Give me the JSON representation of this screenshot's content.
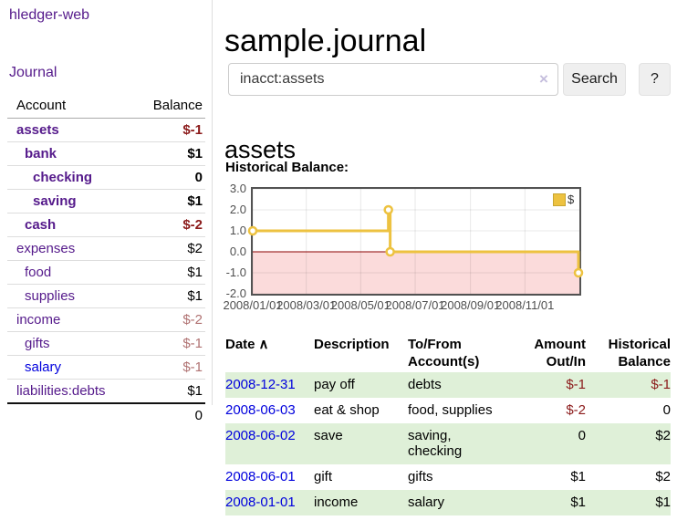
{
  "app": {
    "brand": "hledger-web"
  },
  "sidebar": {
    "nav": {
      "journal": "Journal"
    },
    "accounts_table": {
      "headers": {
        "account": "Account",
        "balance": "Balance"
      },
      "rows": [
        {
          "name": "assets",
          "balance": "$-1"
        },
        {
          "name": "bank",
          "balance": "$1"
        },
        {
          "name": "checking",
          "balance": "0"
        },
        {
          "name": "saving",
          "balance": "$1"
        },
        {
          "name": "cash",
          "balance": "$-2"
        },
        {
          "name": "expenses",
          "balance": "$2"
        },
        {
          "name": "food",
          "balance": "$1"
        },
        {
          "name": "supplies",
          "balance": "$1"
        },
        {
          "name": "income",
          "balance": "$-2"
        },
        {
          "name": "gifts",
          "balance": "$-1"
        },
        {
          "name": "salary",
          "balance": "$-1"
        },
        {
          "name": "liabilities:debts",
          "balance": "$1"
        }
      ],
      "total": "0"
    }
  },
  "main": {
    "title": "sample.journal",
    "search": {
      "value": "inacct:assets",
      "clear_icon": "×",
      "button": "Search",
      "help_button": "?"
    },
    "account_heading": "assets",
    "chart_label": "Historical Balance:"
  },
  "chart_data": {
    "type": "line",
    "style": "step-after",
    "title": "Historical Balance",
    "x_range": [
      "2008-01-01",
      "2009-01-01"
    ],
    "ylim": [
      -2,
      3
    ],
    "grid": true,
    "legend_position": "top-right",
    "series": [
      {
        "name": "$",
        "color": "#edc240",
        "points": [
          [
            "2008-01-01",
            1
          ],
          [
            "2008-06-01",
            2
          ],
          [
            "2008-06-03",
            0
          ],
          [
            "2008-12-31",
            -1
          ]
        ]
      }
    ],
    "x_ticks": [
      {
        "label": "2008/01/01",
        "date": "2008-01-01"
      },
      {
        "label": "2008/03/01",
        "date": "2008-03-01"
      },
      {
        "label": "2008/05/01",
        "date": "2008-05-01"
      },
      {
        "label": "2008/07/01",
        "date": "2008-07-01"
      },
      {
        "label": "2008/09/01",
        "date": "2008-09-01"
      },
      {
        "label": "2008/11/01",
        "date": "2008-11-01"
      }
    ],
    "y_ticks": [
      {
        "label": "3.0",
        "value": 3
      },
      {
        "label": "2.0",
        "value": 2
      },
      {
        "label": "1.0",
        "value": 1
      },
      {
        "label": "0.0",
        "value": 0
      },
      {
        "label": "-1.0",
        "value": -1
      },
      {
        "label": "-2.0",
        "value": -2
      }
    ],
    "negative_region_color": "#fbdbdb",
    "zero_line_color": "#8b0000"
  },
  "register_table": {
    "headers": {
      "date": {
        "label": "Date",
        "sort_indicator": "∧"
      },
      "description": "Description",
      "account": {
        "line1": "To/From",
        "line2": "Account(s)"
      },
      "amount": {
        "line1": "Amount",
        "line2": "Out/In"
      },
      "balance": {
        "line1": "Historical",
        "line2": "Balance"
      }
    },
    "rows": [
      {
        "date": "2008-12-31",
        "description": "pay off",
        "accounts": "debts",
        "amount": "$-1",
        "balance": "$-1"
      },
      {
        "date": "2008-06-03",
        "description": "eat & shop",
        "accounts": "food, supplies",
        "amount": "$-2",
        "balance": "0"
      },
      {
        "date": "2008-06-02",
        "description": "save",
        "accounts": "saving, checking",
        "amount": "0",
        "balance": "$2"
      },
      {
        "date": "2008-06-01",
        "description": "gift",
        "accounts": "gifts",
        "amount": "$1",
        "balance": "$2"
      },
      {
        "date": "2008-01-01",
        "description": "income",
        "accounts": "salary",
        "amount": "$1",
        "balance": "$1"
      }
    ]
  }
}
